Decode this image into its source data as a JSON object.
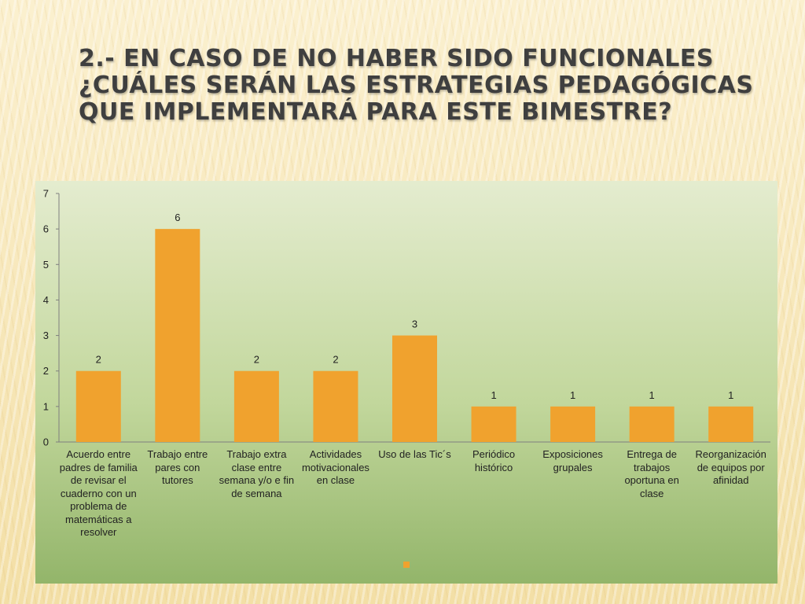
{
  "slide": {
    "title": "2.- En caso de no haber sido funcionales ¿Cuáles serán las estrategias pedagógicas que implementará para este bimestre?"
  },
  "chart_data": {
    "type": "bar",
    "categories": [
      "Acuerdo entre padres de familia de revisar el cuaderno con un problema de matemáticas a resolver",
      "Trabajo entre pares con tutores",
      "Trabajo extra clase entre semana y/o e fin de  semana",
      "Actividades motivacionales en clase",
      "Uso de las Tic´s",
      "Periódico histórico",
      "Exposiciones grupales",
      "Entrega de trabajos oportuna en clase",
      "Reorganización de equipos por afinidad"
    ],
    "values": [
      2,
      6,
      2,
      2,
      3,
      1,
      1,
      1,
      1
    ],
    "ylim": [
      0,
      7
    ],
    "yticks": [
      "0",
      "1",
      "2",
      "3",
      "4",
      "5",
      "6",
      "7"
    ],
    "data_labels": [
      "2",
      "6",
      "2",
      "2",
      "3",
      "1",
      "1",
      "1",
      "1"
    ],
    "bar_color": "#f0a22e",
    "grid": false,
    "legend": "bottom"
  }
}
